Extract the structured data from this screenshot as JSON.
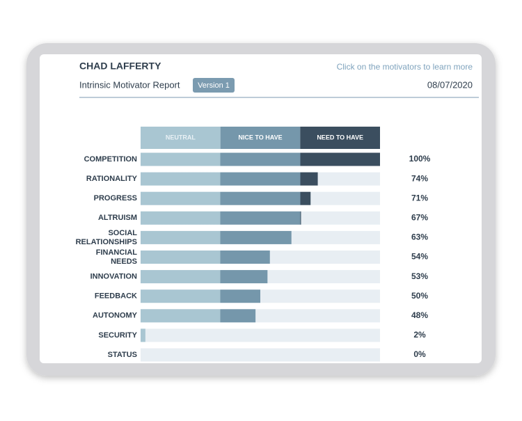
{
  "header": {
    "name": "CHAD LAFFERTY",
    "report_title": "Intrinsic Motivator Report",
    "version": "Version 1",
    "hint": "Click on the motivators to learn more",
    "date": "08/07/2020"
  },
  "chart_data": {
    "type": "bar",
    "orientation": "horizontal",
    "bands": [
      {
        "name": "NEUTRAL",
        "color": "#a9c6d2"
      },
      {
        "name": "NICE TO HAVE",
        "color": "#7597ab"
      },
      {
        "name": "NEED TO HAVE",
        "color": "#3b4e5f"
      }
    ],
    "track_color": "#e8eef3",
    "categories": [
      "COMPETITION",
      "RATIONALITY",
      "PROGRESS",
      "ALTRUISM",
      "SOCIAL RELATIONSHIPS",
      "FINANCIAL NEEDS",
      "INNOVATION",
      "FEEDBACK",
      "AUTONOMY",
      "SECURITY",
      "STATUS"
    ],
    "values": [
      100,
      74,
      71,
      67,
      63,
      54,
      53,
      50,
      48,
      2,
      0
    ],
    "value_labels": [
      "100%",
      "74%",
      "71%",
      "67%",
      "63%",
      "54%",
      "53%",
      "50%",
      "48%",
      "2%",
      "0%"
    ],
    "xlim": [
      0,
      100
    ]
  }
}
